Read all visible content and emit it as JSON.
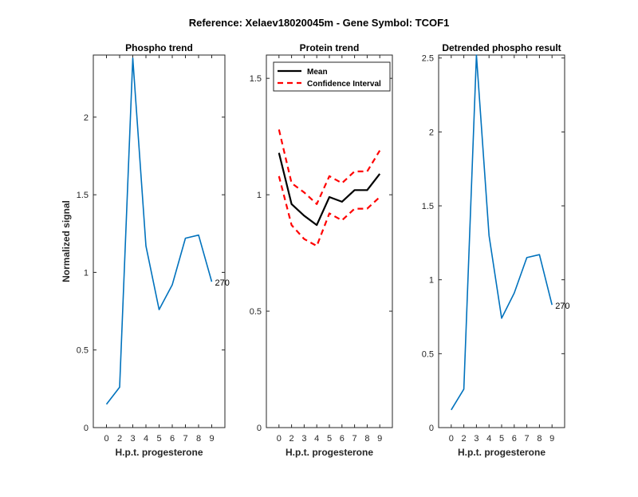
{
  "figure": {
    "title": "Reference:  Xelaev18020045m - Gene Symbol:  TCOF1"
  },
  "chart_data": [
    {
      "type": "line",
      "title": "Phospho trend",
      "xlabel": "H.p.t. progesterone",
      "ylabel": "Normalized signal",
      "x_ticks": [
        "0",
        "2",
        "3",
        "4",
        "5",
        "6",
        "7",
        "8",
        "9"
      ],
      "ylim": [
        0,
        2.4
      ],
      "y_ticks": [
        0,
        0.5,
        1,
        1.5,
        2
      ],
      "y_tick_labels": [
        "0",
        "0.5",
        "1",
        "1.5",
        "2"
      ],
      "series": [
        {
          "color": "#0072bd",
          "values": [
            0.15,
            0.26,
            2.38,
            1.17,
            0.76,
            0.92,
            1.22,
            1.24,
            0.94
          ]
        }
      ],
      "annotations": [
        {
          "text": "270"
        }
      ]
    },
    {
      "type": "line",
      "title": "Protein trend",
      "xlabel": "H.p.t. progesterone",
      "ylabel": "",
      "x_ticks": [
        "0",
        "2",
        "3",
        "4",
        "5",
        "6",
        "7",
        "8",
        "9"
      ],
      "ylim": [
        0,
        1.6
      ],
      "y_ticks": [
        0,
        0.5,
        1,
        1.5
      ],
      "y_tick_labels": [
        "0",
        "0.5",
        "1",
        "1.5"
      ],
      "legend": {
        "position": "top-left",
        "entries": [
          "Mean",
          "Confidence Interval"
        ]
      },
      "series": [
        {
          "name": "Mean",
          "color": "#000000",
          "style": "solid",
          "values": [
            1.18,
            0.96,
            0.91,
            0.87,
            0.99,
            0.97,
            1.02,
            1.02,
            1.09
          ]
        },
        {
          "name": "Confidence Interval",
          "color": "#ff0000",
          "style": "dashed",
          "values": [
            1.28,
            1.05,
            1.01,
            0.96,
            1.08,
            1.05,
            1.1,
            1.1,
            1.19
          ]
        },
        {
          "color": "#ff0000",
          "style": "dashed",
          "values": [
            1.08,
            0.87,
            0.81,
            0.78,
            0.92,
            0.89,
            0.94,
            0.94,
            0.99
          ]
        }
      ]
    },
    {
      "type": "line",
      "title": "Detrended phospho result",
      "xlabel": "H.p.t. progesterone",
      "ylabel": "",
      "x_ticks": [
        "0",
        "2",
        "3",
        "4",
        "5",
        "6",
        "7",
        "8",
        "9"
      ],
      "ylim": [
        0,
        2.52
      ],
      "y_ticks": [
        0,
        0.5,
        1,
        1.5,
        2,
        2.5
      ],
      "y_tick_labels": [
        "0",
        "0.5",
        "1",
        "1.5",
        "2",
        "2.5"
      ],
      "series": [
        {
          "color": "#0072bd",
          "values": [
            0.12,
            0.26,
            2.52,
            1.3,
            0.74,
            0.91,
            1.15,
            1.17,
            0.83
          ]
        }
      ],
      "annotations": [
        {
          "text": "270"
        }
      ]
    }
  ]
}
